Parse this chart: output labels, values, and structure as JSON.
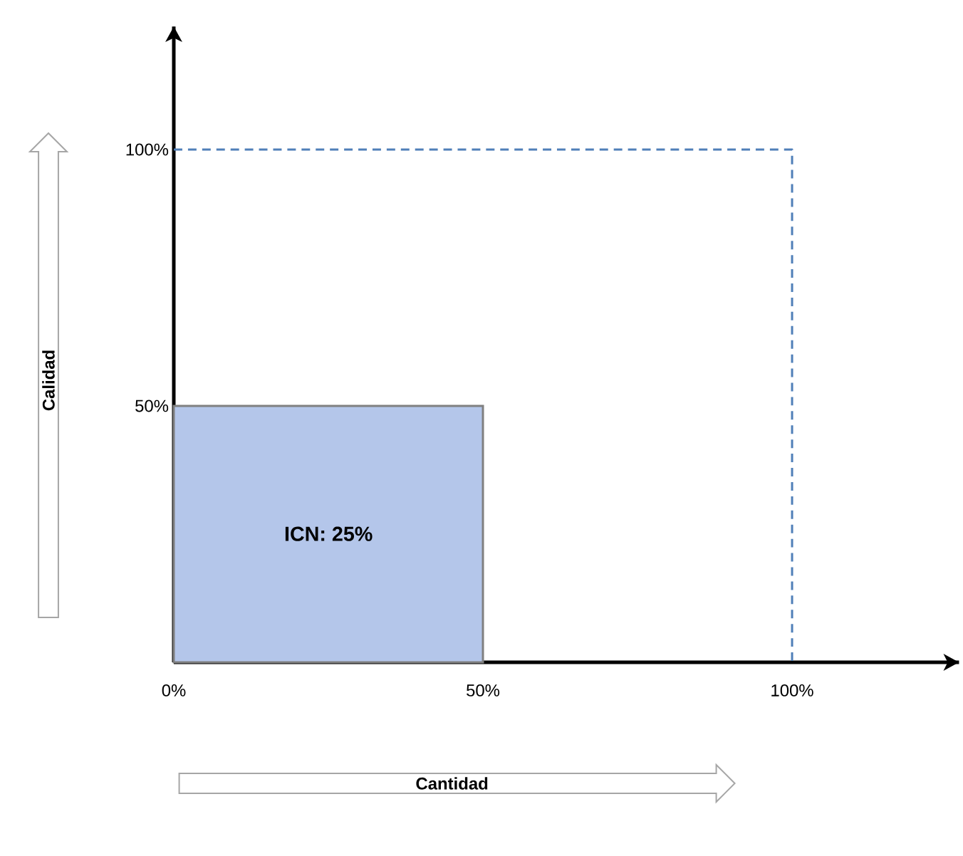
{
  "chart_data": {
    "type": "area",
    "xlabel": "Cantidad",
    "ylabel": "Calidad",
    "xlim": [
      0,
      127
    ],
    "ylim": [
      0,
      124
    ],
    "xticks": [
      {
        "value": 0,
        "label": "0%"
      },
      {
        "value": 50,
        "label": "50%"
      },
      {
        "value": 100,
        "label": "100%"
      }
    ],
    "yticks": [
      {
        "value": 50,
        "label": "50%"
      },
      {
        "value": 100,
        "label": "100%"
      }
    ],
    "series": [
      {
        "type": "area",
        "color": "#b4c6ea",
        "x": [
          0,
          50
        ],
        "values": [
          50,
          50
        ]
      },
      {
        "type": "line",
        "color": "#4f7fb8",
        "line_style": "dashed",
        "x": [
          0,
          100,
          100
        ],
        "values": [
          100,
          100,
          0
        ]
      }
    ],
    "annotations": [
      "ICN: 25%"
    ]
  }
}
